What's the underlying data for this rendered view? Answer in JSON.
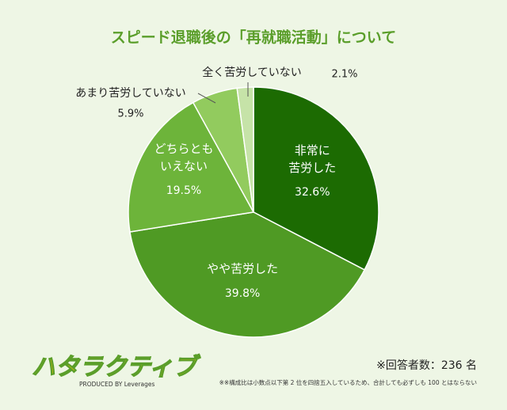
{
  "chart_data": {
    "type": "pie",
    "title": "スピード退職後の「再就職活動」について",
    "categories": [
      "非常に\n苦労した",
      "やや苦労した",
      "どちらとも\nいえない",
      "あまり苦労していない",
      "全く苦労していない"
    ],
    "values": [
      32.6,
      39.8,
      19.5,
      5.9,
      2.1
    ],
    "value_labels": [
      "32.6%",
      "39.8%",
      "19.5%",
      "5.9%",
      "2.1%"
    ],
    "colors": [
      "#1c6b02",
      "#4f9a24",
      "#6db43a",
      "#92cb5e",
      "#c6e3a8"
    ],
    "respondents_note": "※回答者数：236 名",
    "footnote": "※※構成比は小数点以下第 2 位を四捨五入しているため、合計しても必ずしも 100 とはならない",
    "logo": "ハタラクティブ",
    "credit": "PRODUCED BY Leverages"
  }
}
